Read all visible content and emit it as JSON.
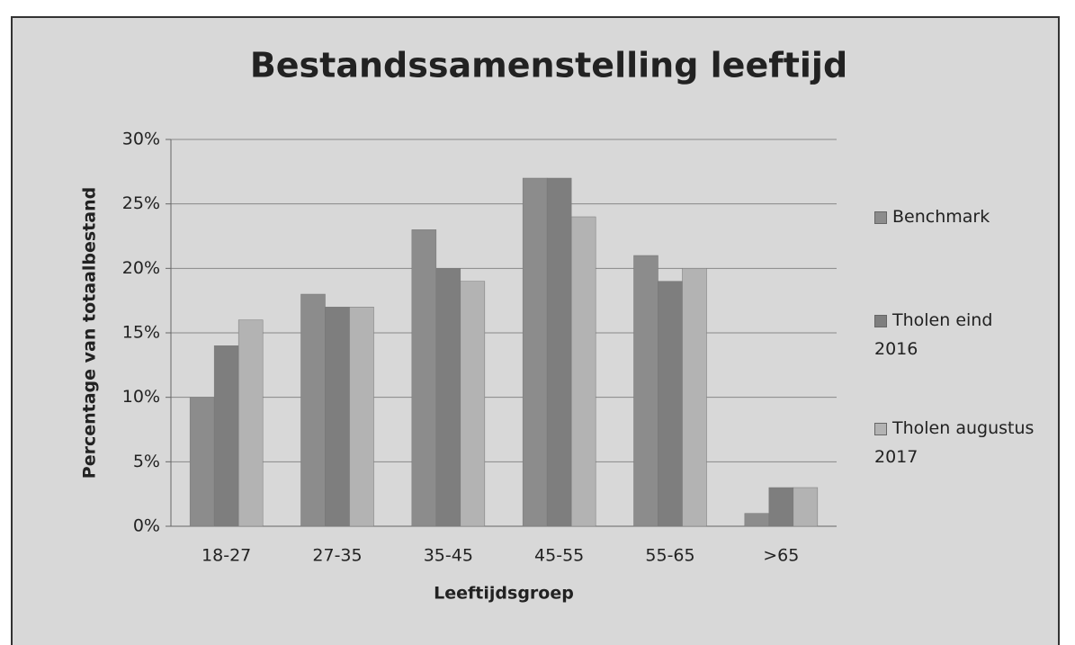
{
  "chart_data": {
    "type": "bar",
    "title": "Bestandssamenstelling leeftijd",
    "y_label": "Percentage van totaalbestand",
    "x_label": "Leeftijdsgroep",
    "categories": [
      "18-27",
      "27-35",
      "35-45",
      "45-55",
      "55-65",
      ">65"
    ],
    "series": [
      {
        "name": "Benchmark",
        "color": "#8c8c8c",
        "values": [
          10,
          18,
          23,
          27,
          21,
          1
        ]
      },
      {
        "name": "Tholen eind 2016",
        "color": "#7e7e7e",
        "values": [
          14,
          17,
          20,
          27,
          19,
          3
        ]
      },
      {
        "name": "Tholen augustus 2017",
        "color": "#b3b3b3",
        "values": [
          16,
          17,
          19,
          24,
          20,
          3
        ]
      }
    ],
    "ylim": [
      0,
      30
    ],
    "yticks": [
      {
        "value": 0,
        "label": "0%"
      },
      {
        "value": 5,
        "label": "5%"
      },
      {
        "value": 10,
        "label": "10%"
      },
      {
        "value": 15,
        "label": "15%"
      },
      {
        "value": 20,
        "label": "20%"
      },
      {
        "value": 25,
        "label": "25%"
      },
      {
        "value": 30,
        "label": "30%"
      }
    ],
    "grid": true,
    "legend": "right"
  }
}
